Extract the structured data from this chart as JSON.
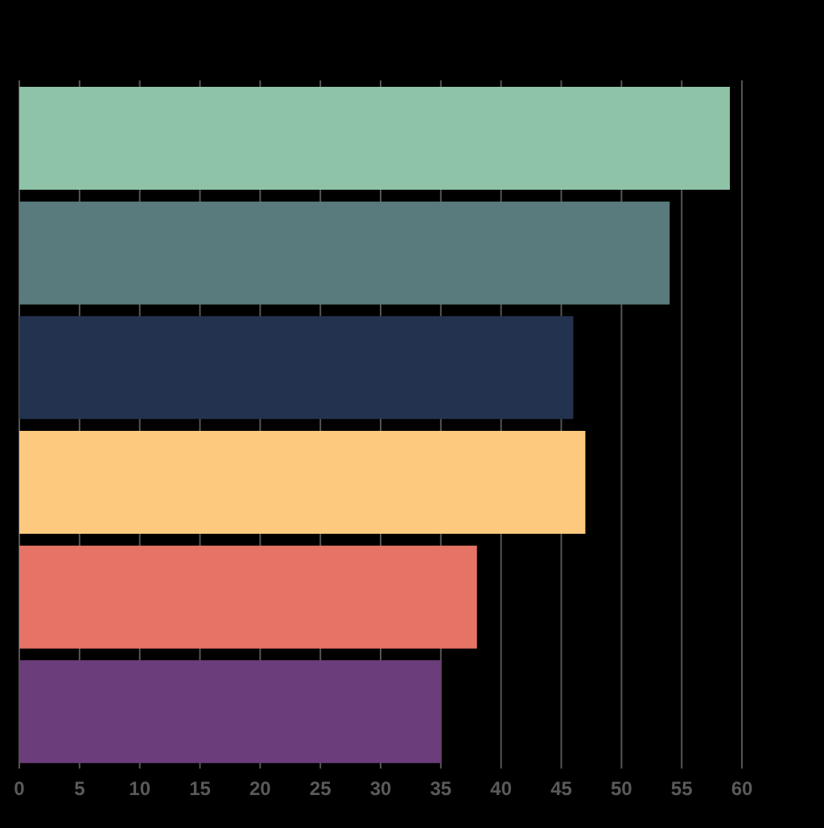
{
  "chart_data": {
    "type": "bar",
    "orientation": "horizontal",
    "categories": [
      null,
      null,
      null,
      null,
      null,
      null
    ],
    "values": [
      59,
      54,
      46,
      47,
      38,
      35
    ],
    "colors": [
      "#8ec3a7",
      "#5a7b7e",
      "#23324f",
      "#fdc97e",
      "#e57466",
      "#6b3d7a"
    ],
    "xlim": [
      0,
      60
    ],
    "xticks": [
      0,
      5,
      10,
      15,
      20,
      25,
      30,
      35,
      40,
      45,
      50,
      55,
      60
    ],
    "grid": "x"
  }
}
